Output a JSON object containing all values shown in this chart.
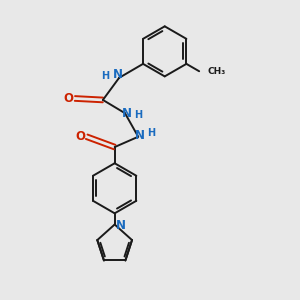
{
  "bg_color": "#e8e8e8",
  "bond_color": "#1a1a1a",
  "N_color": "#1a6bbf",
  "O_color": "#cc2200",
  "font_size": 7.5,
  "line_width": 1.4,
  "fig_size": [
    3.0,
    3.0
  ],
  "dpi": 100,
  "xlim": [
    0,
    10
  ],
  "ylim": [
    0,
    10
  ]
}
